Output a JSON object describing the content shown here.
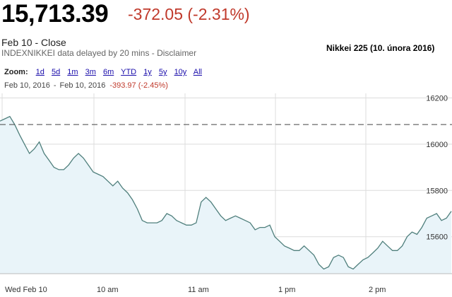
{
  "header": {
    "price": "15,713.39",
    "change": "-372.05 (-2.31%)",
    "close_label": "Feb 10 - Close",
    "source": "INDEXNIKKEI data delayed by 20 mins - Disclaimer",
    "caption": "Nikkei 225 (10. února 2016)"
  },
  "zoom": {
    "label": "Zoom:",
    "options": [
      "1d",
      "5d",
      "1m",
      "3m",
      "6m",
      "YTD",
      "1y",
      "5y",
      "10y",
      "All"
    ]
  },
  "range": {
    "from": "Feb 10, 2016",
    "separator": "-",
    "to": "Feb 10, 2016",
    "change": "-393.97 (-2.45%)"
  },
  "colors": {
    "line": "#4f7f7c",
    "fill": "#e9f4f9",
    "grid": "#dcdcdc",
    "prev_close": "#444444",
    "negative": "#c0392b"
  },
  "chart_data": {
    "type": "area",
    "title": "",
    "x_tick_labels": [
      "Wed Feb 10",
      "10 am",
      "11 am",
      "1 pm",
      "2 pm"
    ],
    "y_tick_labels": [
      "16200",
      "16000",
      "15800",
      "15600"
    ],
    "ylim": [
      15440,
      16220
    ],
    "previous_close": 16085,
    "grid": true,
    "series": [
      {
        "values": [
          16100,
          16110,
          16120,
          16085,
          16040,
          16000,
          15960,
          15980,
          16010,
          15960,
          15930,
          15900,
          15890,
          15890,
          15910,
          15940,
          15960,
          15940,
          15910,
          15880,
          15870,
          15860,
          15840,
          15820,
          15840,
          15810,
          15790,
          15760,
          15720,
          15670,
          15660,
          15660,
          15660,
          15670,
          15700,
          15690,
          15670,
          15660,
          15650,
          15650,
          15660,
          15750,
          15770,
          15750,
          15720,
          15690,
          15670,
          15680,
          15690,
          15680,
          15670,
          15660,
          15630,
          15640,
          15640,
          15650,
          15600,
          15580,
          15560,
          15550,
          15540,
          15540,
          15560,
          15540,
          15520,
          15480,
          15460,
          15470,
          15510,
          15520,
          15510,
          15470,
          15460,
          15480,
          15500,
          15510,
          15530,
          15550,
          15580,
          15560,
          15540,
          15540,
          15560,
          15600,
          15620,
          15610,
          15640,
          15680,
          15690,
          15700,
          15670,
          15680,
          15710
        ]
      }
    ]
  }
}
